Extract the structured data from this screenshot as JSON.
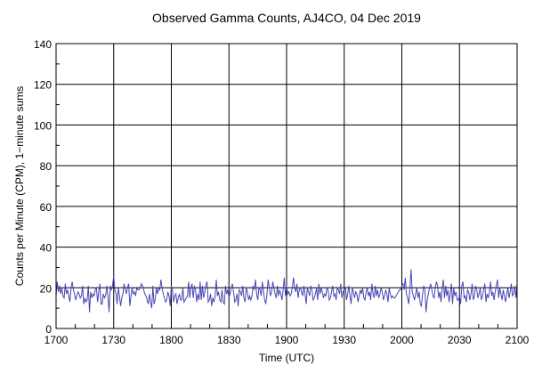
{
  "chart_data": {
    "type": "line",
    "title": "Observed Gamma Counts, AJ4CO, 04 Dec 2019",
    "xlabel": "Time (UTC)",
    "ylabel": "Counts per Minute (CPM), 1−minute sums",
    "x_tick_labels": [
      "1700",
      "1730",
      "1800",
      "1830",
      "1900",
      "1930",
      "2000",
      "2030",
      "2100"
    ],
    "y_tick_labels": [
      "0",
      "20",
      "40",
      "60",
      "80",
      "100",
      "120",
      "140"
    ],
    "ylim": [
      0,
      140
    ],
    "xlim": [
      "1700",
      "2100"
    ],
    "grid": true,
    "line_color": "#4646b4",
    "series": [
      {
        "x_start": "1700",
        "x_end": "2100",
        "values": [
          16,
          23,
          18,
          21,
          17,
          20,
          16,
          15,
          22,
          17,
          19,
          16,
          13,
          20,
          23,
          19,
          17,
          14,
          16,
          18,
          17,
          15,
          16,
          21,
          12,
          15,
          13,
          14,
          21,
          8,
          18,
          15,
          17,
          16,
          19,
          20,
          13,
          18,
          22,
          12,
          12,
          17,
          15,
          16,
          21,
          16,
          8,
          21,
          19,
          21,
          26,
          19,
          17,
          12,
          20,
          16,
          11,
          15,
          17,
          22,
          19,
          17,
          20,
          22,
          11,
          16,
          20,
          17,
          18,
          16,
          20,
          19,
          19,
          20,
          22,
          21,
          19,
          17,
          16,
          14,
          12,
          17,
          13,
          10,
          21,
          12,
          14,
          20,
          17,
          20,
          19,
          24,
          20,
          17,
          15,
          13,
          14,
          18,
          16,
          11,
          21,
          19,
          13,
          16,
          17,
          12,
          15,
          17,
          14,
          14,
          20,
          13,
          14,
          15,
          16,
          23,
          15,
          20,
          22,
          15,
          21,
          19,
          13,
          17,
          14,
          23,
          14,
          21,
          15,
          18,
          21,
          23,
          13,
          14,
          17,
          11,
          15,
          13,
          16,
          24,
          16,
          18,
          14,
          13,
          19,
          13,
          12,
          21,
          17,
          19,
          15,
          17,
          20,
          22,
          18,
          13,
          14,
          17,
          11,
          19,
          18,
          16,
          21,
          15,
          13,
          20,
          18,
          14,
          16,
          14,
          16,
          21,
          19,
          24,
          17,
          14,
          20,
          19,
          16,
          23,
          18,
          14,
          12,
          17,
          24,
          20,
          16,
          18,
          23,
          20,
          17,
          15,
          21,
          16,
          19,
          17,
          14,
          19,
          25,
          16,
          21,
          17,
          18,
          16,
          17,
          20,
          25,
          20,
          18,
          22,
          15,
          19,
          20,
          18,
          16,
          21,
          17,
          12,
          20,
          18,
          16,
          21,
          19,
          14,
          15,
          17,
          20,
          14,
          22,
          17,
          20,
          18,
          15,
          17,
          16,
          20,
          19,
          14,
          15,
          18,
          21,
          16,
          17,
          14,
          20,
          19,
          17,
          22,
          15,
          18,
          19,
          20,
          14,
          17,
          21,
          16,
          12,
          20,
          18,
          15,
          18,
          17,
          13,
          16,
          19,
          17,
          20,
          15,
          14,
          18,
          20,
          16,
          18,
          14,
          22,
          17,
          15,
          21,
          16,
          19,
          15,
          17,
          20,
          18,
          14,
          16,
          19,
          17,
          13,
          20,
          17,
          15,
          16,
          15,
          15,
          16,
          17,
          18,
          19,
          19,
          21,
          22,
          19,
          25,
          17,
          15,
          12,
          20,
          29,
          18,
          16,
          14,
          17,
          20,
          15,
          18,
          12,
          11,
          17,
          21,
          19,
          8,
          14,
          17,
          20,
          22,
          19,
          16,
          15,
          20,
          23,
          21,
          15,
          18,
          13,
          20,
          24,
          15,
          21,
          16,
          19,
          13,
          17,
          22,
          12,
          20,
          16,
          18,
          14,
          14,
          16,
          12,
          21,
          23,
          15,
          16,
          13,
          19,
          18,
          14,
          17,
          22,
          14,
          16,
          21,
          19,
          15,
          17,
          20,
          14,
          16,
          19,
          22,
          13,
          17,
          15,
          18,
          23,
          16,
          18,
          14,
          18,
          21,
          24,
          15,
          20,
          17,
          14,
          19,
          16,
          13,
          17,
          20,
          15,
          18,
          22,
          16,
          17,
          21,
          15,
          22
        ]
      }
    ]
  }
}
